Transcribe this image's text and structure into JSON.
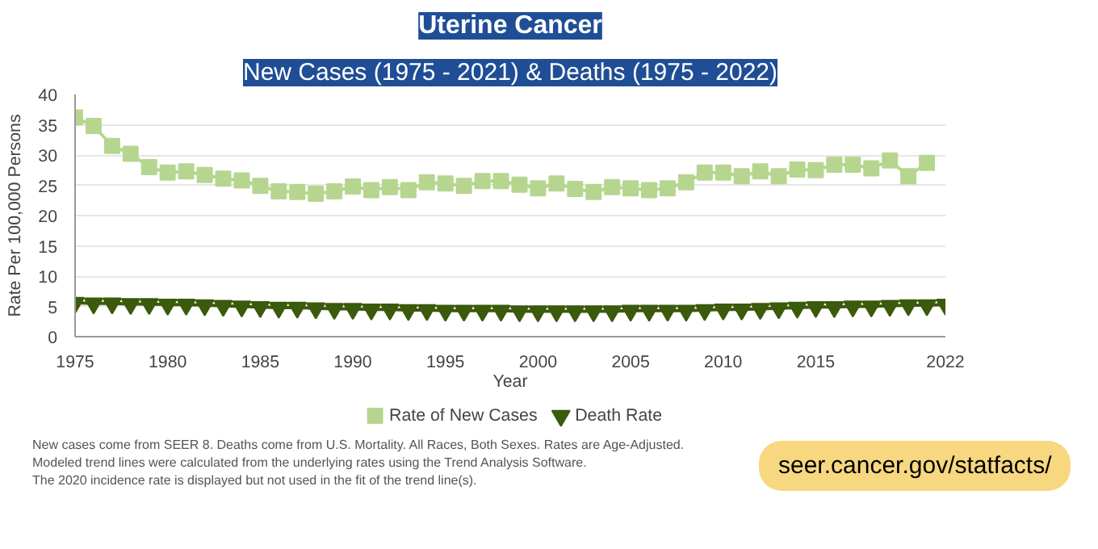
{
  "chart_data": {
    "type": "line",
    "title": "Uterine Cancer",
    "subtitle": "New Cases (1975 - 2021) & Deaths (1975 - 2022)",
    "xlabel": "Year",
    "ylabel": "Rate Per 100,000 Persons",
    "xlim": [
      1975,
      2022
    ],
    "xticks": [
      {
        "value": 1975,
        "label": "1975"
      },
      1980,
      1985,
      1990,
      1995,
      2000,
      2005,
      2010,
      2015,
      {
        "value": 2022,
        "label": "2022"
      }
    ],
    "ylim": [
      0,
      40
    ],
    "yticks": [
      0,
      5,
      10,
      15,
      20,
      25,
      30,
      35,
      40
    ],
    "grid": "y",
    "legend": "bottom",
    "series": [
      {
        "name": "Rate of New Cases",
        "color": "#b6d68f",
        "marker": "square",
        "x": [
          1975,
          1976,
          1977,
          1978,
          1979,
          1980,
          1981,
          1982,
          1983,
          1984,
          1985,
          1986,
          1987,
          1988,
          1989,
          1990,
          1991,
          1992,
          1993,
          1994,
          1995,
          1996,
          1997,
          1998,
          1999,
          2000,
          2001,
          2002,
          2003,
          2004,
          2005,
          2006,
          2007,
          2008,
          2009,
          2010,
          2011,
          2012,
          2013,
          2014,
          2015,
          2016,
          2017,
          2018,
          2019,
          2020,
          2021
        ],
        "values": [
          36.2,
          34.8,
          31.5,
          30.2,
          28.0,
          27.1,
          27.3,
          26.7,
          26.1,
          25.8,
          24.9,
          24.0,
          23.9,
          23.6,
          24.0,
          24.8,
          24.2,
          24.7,
          24.2,
          25.5,
          25.3,
          24.9,
          25.7,
          25.7,
          25.1,
          24.5,
          25.3,
          24.4,
          23.9,
          24.7,
          24.5,
          24.2,
          24.5,
          25.5,
          27.1,
          27.1,
          26.5,
          27.3,
          26.5,
          27.6,
          27.5,
          28.4,
          28.4,
          27.8,
          29.1,
          26.5,
          28.7
        ]
      },
      {
        "name": "Death Rate",
        "color": "#3b5a0c",
        "marker": "triangle",
        "x": [
          1975,
          1976,
          1977,
          1978,
          1979,
          1980,
          1981,
          1982,
          1983,
          1984,
          1985,
          1986,
          1987,
          1988,
          1989,
          1990,
          1991,
          1992,
          1993,
          1994,
          1995,
          1996,
          1997,
          1998,
          1999,
          2000,
          2001,
          2002,
          2003,
          2004,
          2005,
          2006,
          2007,
          2008,
          2009,
          2010,
          2011,
          2012,
          2013,
          2014,
          2015,
          2016,
          2017,
          2018,
          2019,
          2020,
          2021,
          2022
        ],
        "values": [
          5.6,
          5.5,
          5.5,
          5.4,
          5.4,
          5.3,
          5.3,
          5.2,
          5.1,
          5.0,
          4.9,
          4.8,
          4.8,
          4.7,
          4.6,
          4.6,
          4.5,
          4.5,
          4.4,
          4.4,
          4.3,
          4.3,
          4.3,
          4.3,
          4.2,
          4.2,
          4.2,
          4.2,
          4.2,
          4.2,
          4.3,
          4.3,
          4.3,
          4.3,
          4.4,
          4.5,
          4.5,
          4.6,
          4.7,
          4.8,
          4.9,
          4.9,
          5.0,
          5.0,
          5.1,
          5.2,
          5.2,
          5.3
        ]
      }
    ],
    "annotations": [
      "New cases come from SEER 8. Deaths come from U.S. Mortality. All Races, Both Sexes. Rates are Age-Adjusted.",
      "Modeled trend lines were calculated from the underlying rates using the Trend Analysis Software.",
      "The 2020 incidence rate is displayed but not used in the fit of the trend line(s).",
      "seer.cancer.gov/statfacts/"
    ]
  }
}
